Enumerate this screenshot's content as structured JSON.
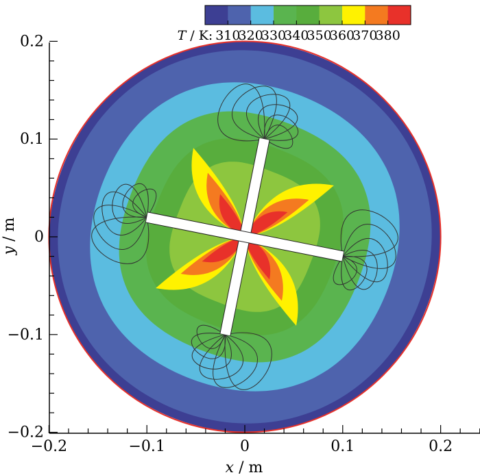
{
  "chart_data": {
    "type": "contour",
    "title": "",
    "xlabel": {
      "symbol": "x",
      "unit": " / m"
    },
    "ylabel": {
      "symbol": "y",
      "unit": " / m"
    },
    "xlim": [
      -0.2,
      0.24
    ],
    "ylim": [
      -0.2,
      0.2
    ],
    "x_ticks": [
      {
        "value": -0.2,
        "label": "−0.2"
      },
      {
        "value": -0.1,
        "label": "−0.1"
      },
      {
        "value": 0,
        "label": "0"
      },
      {
        "value": 0.1,
        "label": "0.1"
      },
      {
        "value": 0.2,
        "label": "0.2"
      }
    ],
    "y_ticks": [
      {
        "value": 0.2,
        "label": "0.2"
      },
      {
        "value": 0.1,
        "label": "0.1"
      },
      {
        "value": 0,
        "label": "0"
      },
      {
        "value": -0.1,
        "label": "−0.1"
      },
      {
        "value": -0.2,
        "label": "−0.2"
      }
    ],
    "domain": {
      "shape": "circle",
      "center": [
        0,
        0
      ],
      "radius": 0.2
    },
    "blades": [
      {
        "from": [
          -0.02,
          -0.1
        ],
        "to": [
          0.02,
          0.1
        ],
        "width": 0.01
      },
      {
        "from": [
          -0.1,
          0.02
        ],
        "to": [
          0.1,
          -0.02
        ],
        "width": 0.01
      }
    ],
    "colorbar": {
      "label_symbol": "T",
      "label_unit": " / K: ",
      "tick_labels": [
        "310",
        "320",
        "330",
        "340",
        "350",
        "360",
        "370",
        "380"
      ],
      "colors": [
        "#3d3f93",
        "#4e63ad",
        "#5bbce0",
        "#5ab44f",
        "#58ad3d",
        "#8dc63f",
        "#fff200",
        "#f47a20",
        "#e8312a"
      ]
    },
    "temperature_bands": [
      {
        "level": 305,
        "color": "#3d3f93",
        "scale": 1.0
      },
      {
        "level": 310,
        "color": "#4e63ad",
        "scale": 0.955
      },
      {
        "level": 320,
        "color": "#5bbce0",
        "scale": 0.79
      },
      {
        "level": 330,
        "color": "#5ab44f",
        "scale": 0.64
      },
      {
        "level": 340,
        "color": "#58ad3d",
        "scale": 0.5
      },
      {
        "level": 350,
        "color": "#8dc63f",
        "scale": 0.38
      }
    ]
  },
  "colors": {
    "boundary": "#e8312a",
    "streamline": "#333333",
    "blade": "#ffffff"
  }
}
